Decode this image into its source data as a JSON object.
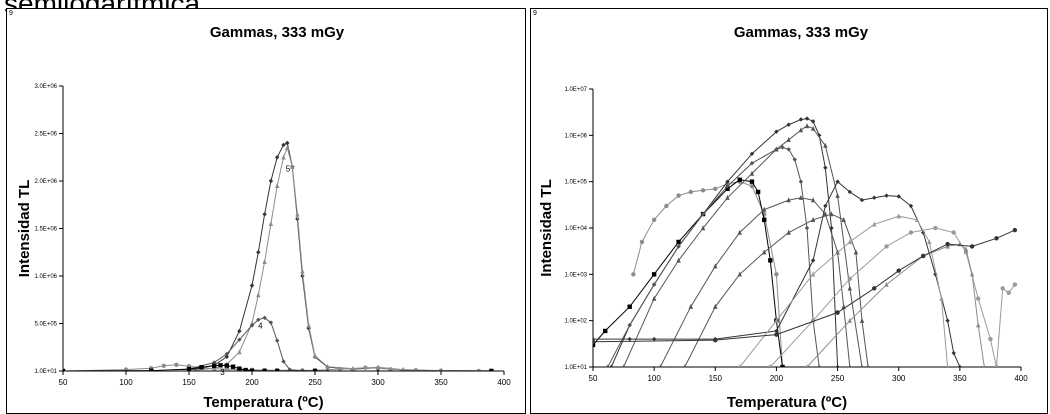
{
  "page": {
    "heading": "semilogarítmica"
  },
  "panels": [
    {
      "id_label": "9"
    },
    {
      "id_label": "9"
    }
  ],
  "colors": {
    "dark": "#333333",
    "mid": "#555555",
    "light": "#8c8c8c",
    "black": "#000000",
    "lighter": "#9a9a9a"
  },
  "chart_data": [
    {
      "type": "line",
      "title": "Gammas, 333 mGy",
      "xlabel": "Temperatura (ºC)",
      "ylabel": "Intensidad TL",
      "xlim": [
        50,
        400
      ],
      "ylim": [
        10,
        3000000
      ],
      "xticks": [
        50,
        100,
        150,
        200,
        250,
        300,
        350,
        400
      ],
      "yticks": [
        {
          "v": 10,
          "label": "1.0E+01"
        },
        {
          "v": 500000,
          "label": "5.0E+05"
        },
        {
          "v": 1000000,
          "label": "1.0E+06"
        },
        {
          "v": 1500000,
          "label": "1.5E+06"
        },
        {
          "v": 2000000,
          "label": "2.0E+06"
        },
        {
          "v": 2500000,
          "label": "2.5E+06"
        },
        {
          "v": 3000000,
          "label": "3.0E+06"
        }
      ],
      "annotations": [
        {
          "text": "5",
          "x": 227,
          "y": 2100000
        },
        {
          "text": "4",
          "x": 205,
          "y": 450000
        },
        {
          "text": "3",
          "x": 175,
          "y": -40000
        }
      ],
      "series": [
        {
          "color": "dark",
          "marker": "diamond",
          "x": [
            50,
            100,
            150,
            170,
            180,
            190,
            200,
            205,
            210,
            215,
            220,
            225,
            228,
            232,
            236,
            240,
            245,
            250,
            260,
            280,
            300,
            320,
            350,
            390
          ],
          "y": [
            10,
            300,
            5000,
            60000,
            150000,
            420000,
            900000,
            1250000,
            1650000,
            2000000,
            2250000,
            2380000,
            2400000,
            2150000,
            1600000,
            1000000,
            450000,
            150000,
            40000,
            20000,
            35000,
            12000,
            3000,
            1000
          ]
        },
        {
          "color": "light",
          "marker": "triangle",
          "x": [
            50,
            100,
            150,
            170,
            180,
            190,
            200,
            205,
            210,
            215,
            220,
            225,
            228,
            232,
            236,
            240,
            245,
            250,
            260,
            280,
            300,
            320,
            350,
            390
          ],
          "y": [
            10,
            200,
            3000,
            30000,
            70000,
            200000,
            500000,
            800000,
            1150000,
            1550000,
            1950000,
            2250000,
            2350000,
            2150000,
            1650000,
            1050000,
            480000,
            160000,
            45000,
            25000,
            40000,
            15000,
            4000,
            1500
          ]
        },
        {
          "color": "light",
          "marker": "circle",
          "x": [
            50,
            100,
            120,
            130,
            140,
            150,
            160,
            170,
            180,
            190,
            200,
            210,
            220,
            230,
            240,
            250,
            270,
            290,
            300,
            310,
            330,
            350,
            380,
            390
          ],
          "y": [
            10,
            15000,
            30000,
            55000,
            65000,
            50000,
            35000,
            25000,
            20000,
            15000,
            12000,
            10000,
            8000,
            7000,
            6000,
            8000,
            20000,
            35000,
            30000,
            18000,
            8000,
            3000,
            1000,
            500
          ]
        },
        {
          "color": "mid",
          "marker": "diamond",
          "x": [
            50,
            120,
            150,
            170,
            180,
            190,
            200,
            205,
            210,
            215,
            220,
            225,
            230,
            240,
            260,
            300,
            390
          ],
          "y": [
            10,
            2000,
            20000,
            90000,
            180000,
            330000,
            480000,
            540000,
            560000,
            510000,
            320000,
            100000,
            15000,
            2000,
            500,
            200,
            100
          ]
        },
        {
          "color": "black",
          "marker": "square",
          "x": [
            50,
            120,
            150,
            160,
            170,
            175,
            180,
            185,
            190,
            195,
            200,
            210,
            220,
            250,
            390
          ],
          "y": [
            10,
            3000,
            20000,
            40000,
            55000,
            60000,
            57000,
            45000,
            25000,
            10000,
            2000,
            300,
            100,
            50,
            30
          ]
        }
      ]
    },
    {
      "type": "line",
      "title": "Gammas, 333 mGy",
      "xlabel": "Temperatura (ºC)",
      "ylabel": "Intensidad TL",
      "ylog": true,
      "xlim": [
        50,
        400
      ],
      "ylim": [
        10,
        10000000
      ],
      "xticks": [
        50,
        100,
        150,
        200,
        250,
        300,
        350,
        400
      ],
      "yticks": [
        {
          "v": 10,
          "label": "1.0E+01"
        },
        {
          "v": 100,
          "label": "1.0E+02"
        },
        {
          "v": 1000,
          "label": "1.0E+03"
        },
        {
          "v": 10000,
          "label": "1.0E+04"
        },
        {
          "v": 100000,
          "label": "1.0E+05"
        },
        {
          "v": 1000000,
          "label": "1.0E+06"
        },
        {
          "v": 10000000,
          "label": "1.0E+07"
        }
      ],
      "series": [
        {
          "color": "light",
          "marker": "circle",
          "x": [
            83,
            90,
            100,
            110,
            120,
            130,
            140,
            150,
            160,
            170,
            180,
            190,
            200,
            205
          ],
          "y": [
            1000,
            5000,
            15000,
            30000,
            50000,
            60000,
            65000,
            70000,
            90000,
            100000,
            80000,
            20000,
            1000,
            10
          ]
        },
        {
          "color": "black",
          "marker": "square",
          "x": [
            50,
            60,
            80,
            100,
            120,
            140,
            160,
            170,
            180,
            185,
            190,
            195,
            200,
            205
          ],
          "y": [
            30,
            60,
            200,
            1000,
            5000,
            20000,
            70000,
            110000,
            100000,
            60000,
            15000,
            2000,
            100,
            10
          ]
        },
        {
          "color": "dark",
          "marker": "diamond",
          "x": [
            65,
            80,
            100,
            120,
            140,
            160,
            180,
            200,
            210,
            220,
            225,
            230,
            235,
            240,
            245,
            250
          ],
          "y": [
            10,
            80,
            600,
            4000,
            20000,
            100000,
            400000,
            1200000,
            1700000,
            2200000,
            2300000,
            2000000,
            1000000,
            200000,
            10000,
            10
          ]
        },
        {
          "color": "mid",
          "marker": "diamond",
          "x": [
            62,
            80,
            100,
            120,
            140,
            160,
            180,
            200,
            205,
            210,
            215,
            220,
            225,
            230,
            235
          ],
          "y": [
            10,
            80,
            600,
            4000,
            20000,
            80000,
            250000,
            500000,
            550000,
            500000,
            300000,
            100000,
            10000,
            100,
            10
          ]
        },
        {
          "color": "mid",
          "marker": "triangle",
          "x": [
            75,
            100,
            120,
            140,
            160,
            180,
            200,
            210,
            220,
            225,
            230,
            240,
            250,
            260,
            270
          ],
          "y": [
            10,
            300,
            2000,
            10000,
            45000,
            150000,
            500000,
            800000,
            1300000,
            1600000,
            1400000,
            600000,
            50000,
            500,
            10
          ]
        },
        {
          "color": "mid",
          "marker": "triangle",
          "x": [
            105,
            130,
            150,
            170,
            190,
            210,
            220,
            230,
            240,
            250,
            255,
            260
          ],
          "y": [
            10,
            200,
            1500,
            8000,
            25000,
            40000,
            45000,
            40000,
            20000,
            3000,
            200,
            10
          ]
        },
        {
          "color": "mid",
          "marker": "triangle",
          "x": [
            125,
            150,
            170,
            190,
            210,
            230,
            245,
            255,
            265,
            270,
            275
          ],
          "y": [
            10,
            200,
            1000,
            3000,
            8000,
            15000,
            20000,
            15000,
            3000,
            100,
            10
          ]
        },
        {
          "color": "dark",
          "marker": "diamond",
          "x": [
            50,
            80,
            100,
            150,
            200,
            230,
            240,
            250,
            260,
            270,
            280,
            290,
            300,
            310,
            320,
            330,
            340,
            345,
            350
          ],
          "y": [
            40,
            40,
            40,
            40,
            60,
            2000,
            30000,
            100000,
            60000,
            40000,
            45000,
            50000,
            48000,
            30000,
            8000,
            1000,
            100,
            20,
            10
          ]
        },
        {
          "color": "lighter",
          "marker": "triangle",
          "x": [
            170,
            200,
            230,
            260,
            280,
            300,
            315,
            325,
            335,
            340
          ],
          "y": [
            10,
            100,
            1000,
            5000,
            12000,
            18000,
            15000,
            5000,
            300,
            10
          ]
        },
        {
          "color": "lighter",
          "marker": "circle",
          "x": [
            195,
            230,
            260,
            290,
            310,
            330,
            345,
            355,
            365,
            375,
            380,
            385,
            390,
            395
          ],
          "y": [
            10,
            100,
            800,
            4000,
            8000,
            10000,
            8000,
            3000,
            300,
            40,
            10,
            500,
            400,
            600
          ]
        },
        {
          "color": "light",
          "marker": "triangle",
          "x": [
            225,
            260,
            290,
            320,
            340,
            350,
            355,
            360,
            365,
            370
          ],
          "y": [
            10,
            100,
            600,
            2500,
            4000,
            4500,
            3500,
            1000,
            80,
            10
          ]
        },
        {
          "color": "dark",
          "marker": "circle",
          "x": [
            50,
            150,
            200,
            250,
            280,
            300,
            320,
            340,
            360,
            380,
            395
          ],
          "y": [
            35,
            38,
            50,
            150,
            500,
            1200,
            2500,
            4500,
            4000,
            6000,
            9000
          ]
        }
      ]
    }
  ]
}
